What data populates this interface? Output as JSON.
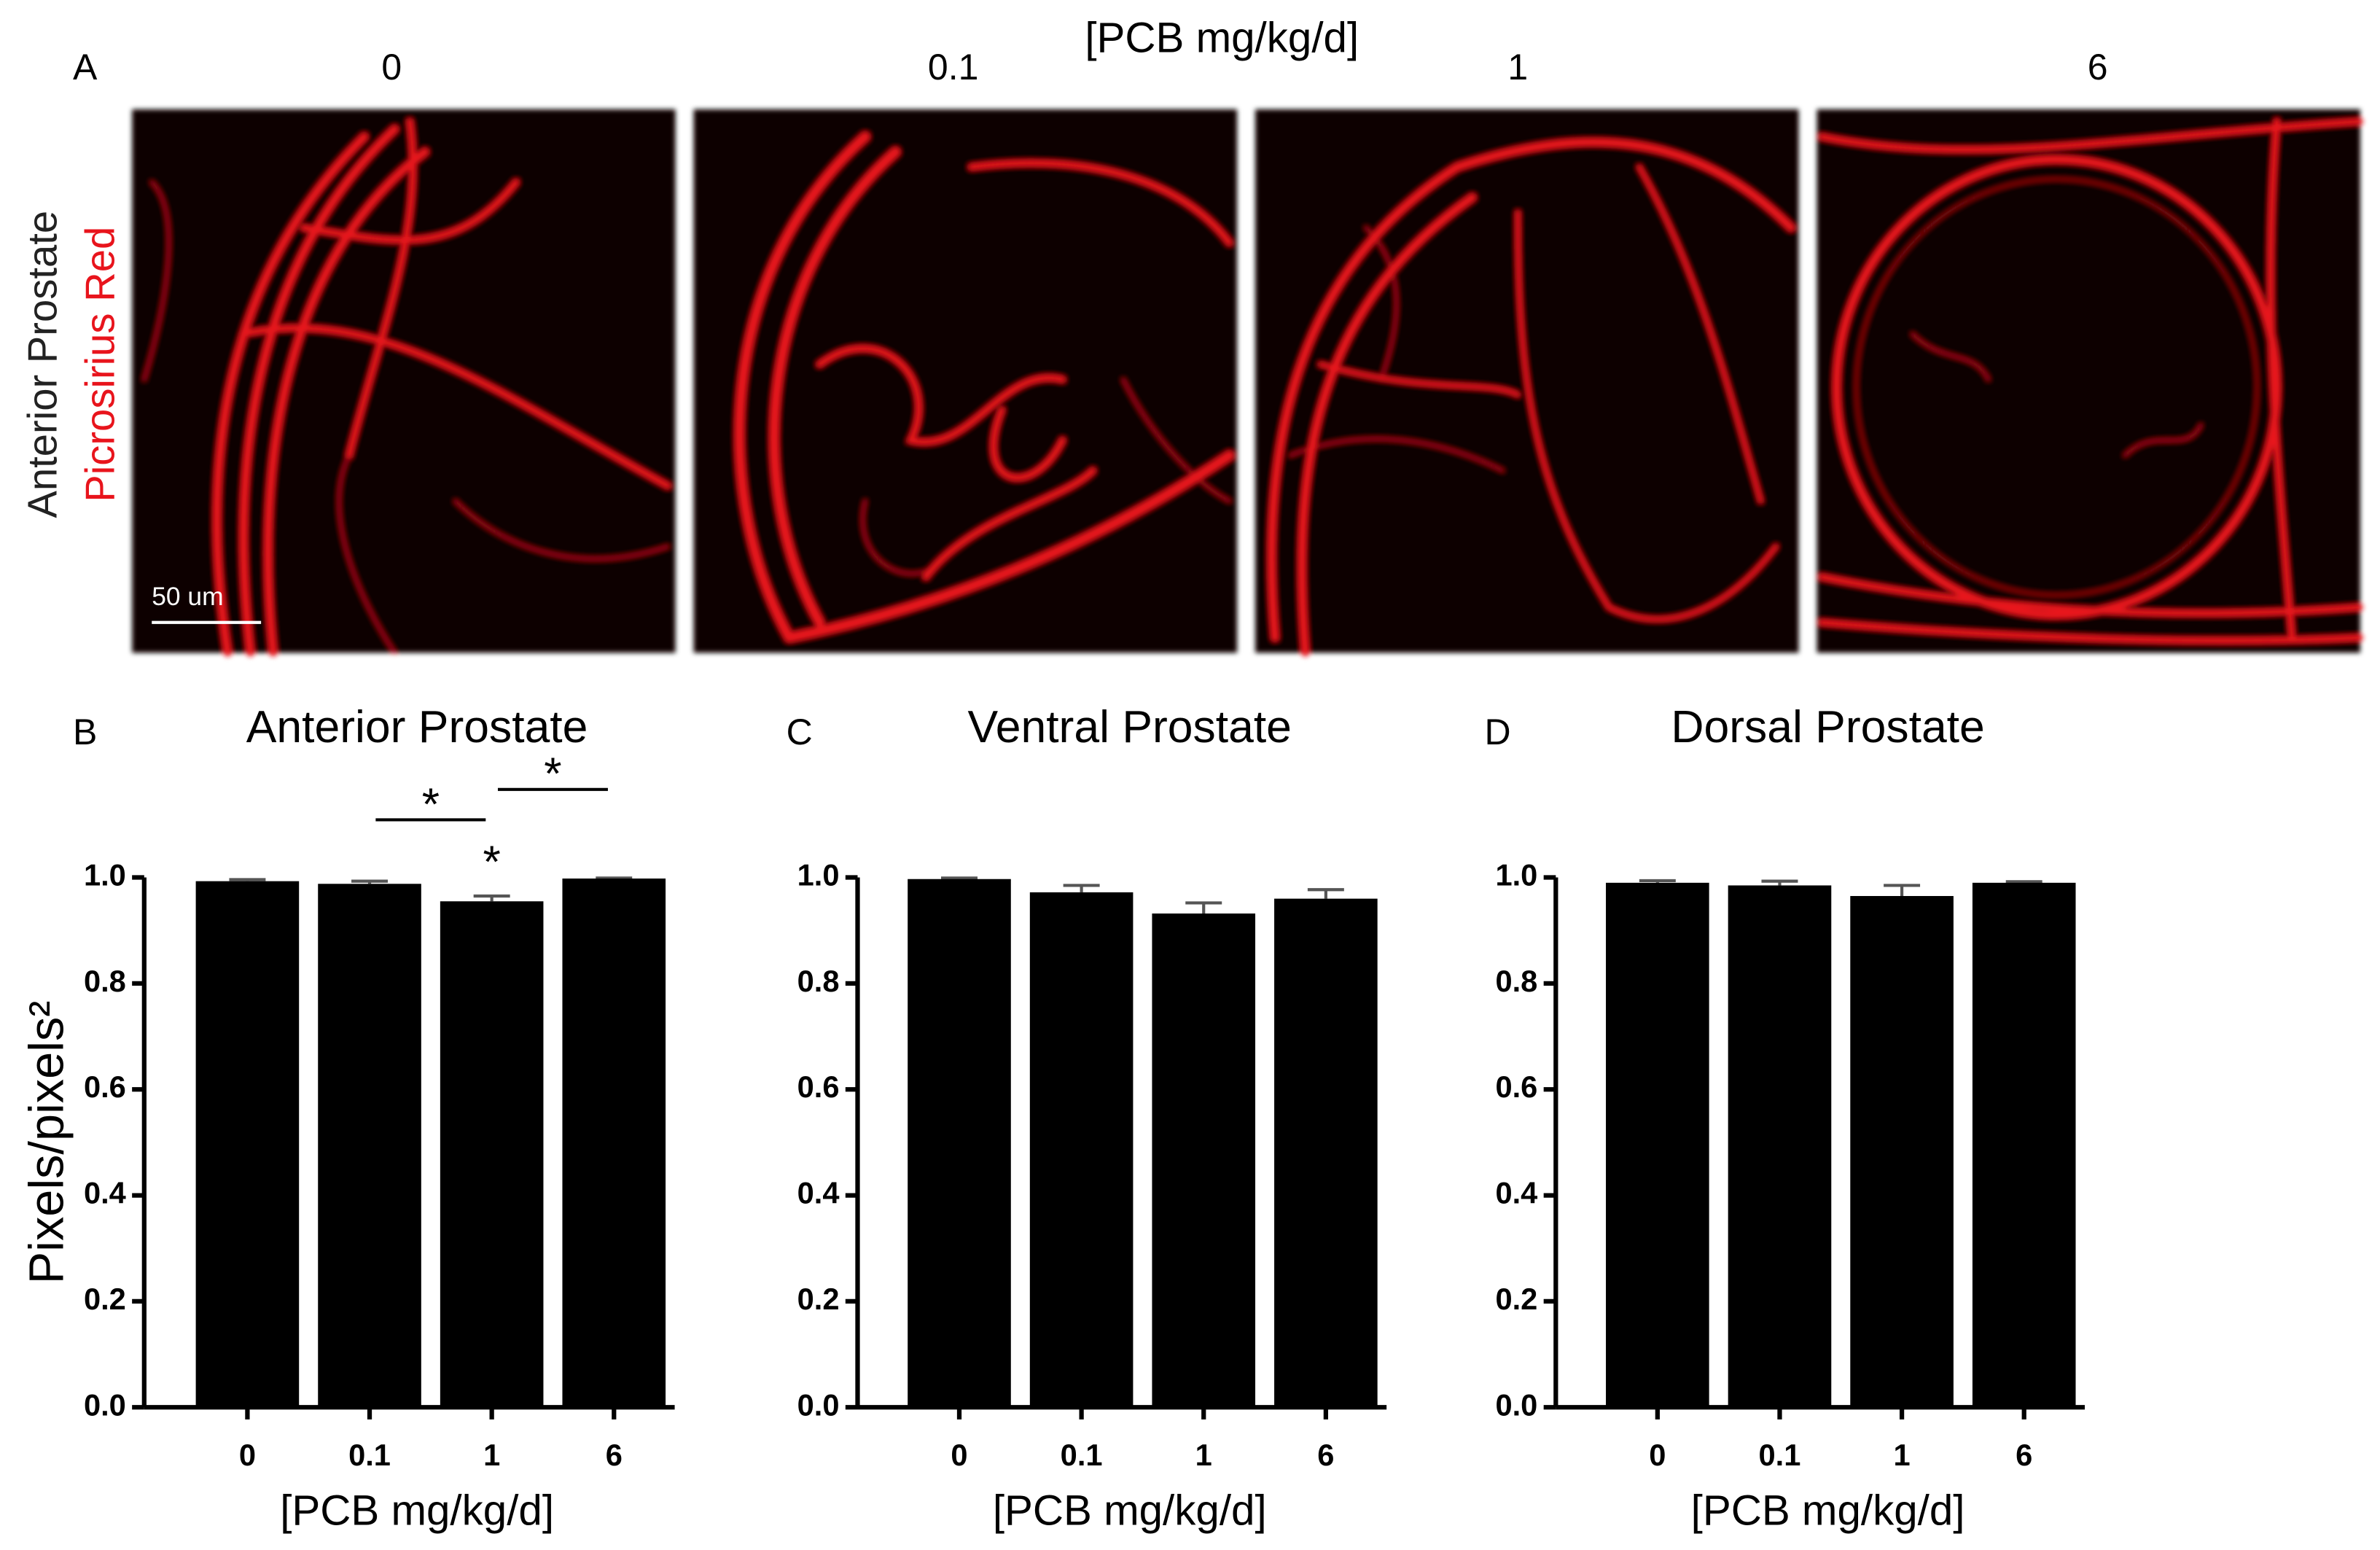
{
  "figure": {
    "panel": "A",
    "header": "[PCB mg/kg/d]",
    "doses": [
      "0",
      "0.1",
      "1",
      "6"
    ],
    "row_label": "Anterior Prostate",
    "stain": "Picrosirius Red",
    "scale_bar": "50 um"
  },
  "chart_data": [
    {
      "type": "bar",
      "panel": "B",
      "title": "Anterior Prostate",
      "xlabel": "[PCB mg/kg/d]",
      "ylabel": "Pixels/pixels²",
      "categories": [
        "0",
        "0.1",
        "1",
        "6"
      ],
      "values": [
        0.993,
        0.988,
        0.955,
        0.998
      ],
      "errors": [
        0.003,
        0.005,
        0.01,
        0.001
      ],
      "color": "#000000",
      "ylim": [
        0,
        1.0
      ],
      "yticks": [
        {
          "value": 0,
          "label": "0.0"
        },
        0.2,
        0.4,
        0.6,
        0.8,
        {
          "value": 1,
          "label": "1.0"
        }
      ],
      "significance": [
        {
          "between": [
            "0.1",
            "1"
          ],
          "label": "*"
        },
        {
          "between": [
            "1",
            "6"
          ],
          "label": "*"
        },
        {
          "between": [
            "1"
          ],
          "label": "*"
        }
      ]
    },
    {
      "type": "bar",
      "panel": "C",
      "title": "Ventral Prostate",
      "xlabel": "[PCB mg/kg/d]",
      "categories": [
        "0",
        "0.1",
        "1",
        "6"
      ],
      "values": [
        0.997,
        0.972,
        0.932,
        0.96
      ],
      "errors": [
        0.002,
        0.013,
        0.02,
        0.017
      ],
      "color": "#000000",
      "ylim": [
        0,
        1.0
      ],
      "yticks": [
        {
          "value": 0,
          "label": "0.0"
        },
        0.2,
        0.4,
        0.6,
        0.8,
        {
          "value": 1,
          "label": "1.0"
        }
      ]
    },
    {
      "type": "bar",
      "panel": "D",
      "title": "Dorsal Prostate",
      "xlabel": "[PCB mg/kg/d]",
      "categories": [
        "0",
        "0.1",
        "1",
        "6"
      ],
      "values": [
        0.99,
        0.985,
        0.965,
        0.99
      ],
      "errors": [
        0.004,
        0.008,
        0.02,
        0.002
      ],
      "color": "#000000",
      "ylim": [
        0,
        1.0
      ],
      "yticks": [
        {
          "value": 0,
          "label": "0.0"
        },
        0.2,
        0.4,
        0.6,
        0.8,
        {
          "value": 1,
          "label": "1.0"
        }
      ]
    }
  ]
}
